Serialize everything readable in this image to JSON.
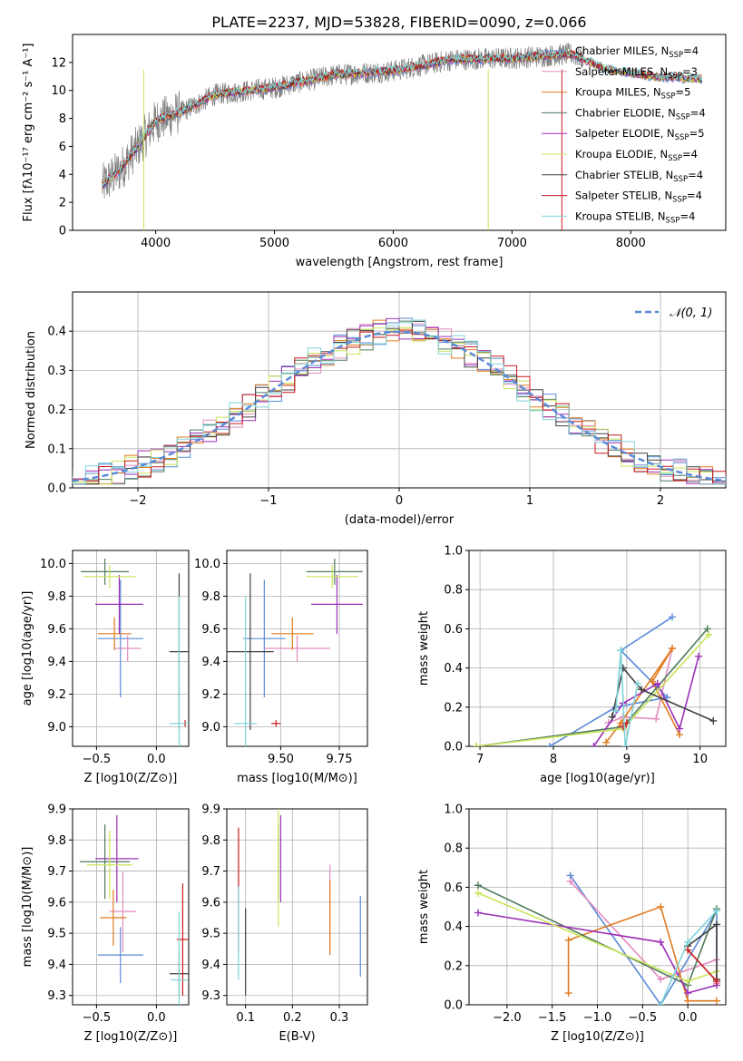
{
  "colors": {
    "chabrier_miles": "#5b8bd6",
    "salpeter_miles": "#e38cbf",
    "kroupa_miles": "#e07b1f",
    "chabrier_elodie": "#4f7a5c",
    "salpeter_elodie": "#9b30b8",
    "kroupa_elodie": "#c9e55a",
    "chabrier_stelib": "#404040",
    "salpeter_stelib": "#c8191e",
    "kroupa_stelib": "#7fd3d8",
    "data": "#808080"
  },
  "header": {
    "title": "PLATE=2237, MJD=53828, FIBERID=0090, z=0.066"
  },
  "legend": {
    "entries": [
      {
        "name": "Chabrier MILES",
        "n": "4",
        "color": "chabrier_miles"
      },
      {
        "name": "Salpeter MILES",
        "n": "3",
        "color": "salpeter_miles"
      },
      {
        "name": "Kroupa MILES",
        "n": "5",
        "color": "kroupa_miles"
      },
      {
        "name": "Chabrier ELODIE",
        "n": "4",
        "color": "chabrier_elodie"
      },
      {
        "name": "Salpeter ELODIE",
        "n": "5",
        "color": "salpeter_elodie"
      },
      {
        "name": "Kroupa ELODIE",
        "n": "4",
        "color": "kroupa_elodie"
      },
      {
        "name": "Chabrier STELIB",
        "n": "4",
        "color": "chabrier_stelib"
      },
      {
        "name": "Salpeter STELIB",
        "n": "4",
        "color": "salpeter_stelib"
      },
      {
        "name": "Kroupa STELIB",
        "n": "4",
        "color": "kroupa_stelib"
      }
    ],
    "n_prefix": "N",
    "n_sub": "SSP"
  },
  "chart_data": [
    {
      "id": "spectrum",
      "type": "line",
      "xlabel": "wavelength [Angstrom, rest frame]",
      "ylabel": "Flux [fλ10⁻¹⁷ erg cm⁻² s⁻¹ A⁻¹]",
      "xlim": [
        3300,
        8800
      ],
      "ylim": [
        0,
        14
      ],
      "xticks": [
        4000,
        5000,
        6000,
        7000,
        8000
      ],
      "yticks": [
        0,
        2,
        4,
        6,
        8,
        10,
        12
      ],
      "continuum_knots": [
        [
          3550,
          3.2
        ],
        [
          3700,
          4.3
        ],
        [
          3850,
          6.0
        ],
        [
          4000,
          7.8
        ],
        [
          4250,
          8.6
        ],
        [
          4500,
          9.7
        ],
        [
          5000,
          10.2
        ],
        [
          5500,
          11.1
        ],
        [
          6000,
          11.4
        ],
        [
          6500,
          12.2
        ],
        [
          7000,
          12.3
        ],
        [
          7500,
          12.6
        ],
        [
          7800,
          11.5
        ],
        [
          8200,
          11.0
        ],
        [
          8600,
          10.8
        ]
      ],
      "data_range": [
        3550,
        7600
      ],
      "model_range": [
        3550,
        8600
      ]
    },
    {
      "id": "residuals",
      "type": "line",
      "xlabel": "(data-model)/error",
      "ylabel": "Normed distribution",
      "xlim": [
        -2.5,
        2.5
      ],
      "ylim": [
        0,
        0.5
      ],
      "xticks": [
        -2,
        -1,
        0,
        1,
        2
      ],
      "yticks": [
        0.0,
        0.1,
        0.2,
        0.3,
        0.4
      ],
      "legend": "𝒩(0, 1)",
      "gaussian": {
        "mu": 0,
        "sigma": 1
      }
    },
    {
      "id": "age-vs-z",
      "type": "scatter",
      "xlabel": "Z [log10(Z/Z⊙)]",
      "ylabel": "age  [log10(age/yr)]",
      "xlim": [
        -0.7,
        0.27
      ],
      "ylim": [
        8.88,
        10.08
      ],
      "xticks": [
        -0.5,
        0.0
      ],
      "yticks": [
        9.0,
        9.2,
        9.4,
        9.6,
        9.8,
        10.0
      ],
      "points": [
        {
          "s": "chabrier_miles",
          "x": -0.3,
          "xe": 0.19,
          "y": 9.54,
          "ye": 0.36
        },
        {
          "s": "salpeter_miles",
          "x": -0.24,
          "xe": 0.11,
          "y": 9.48,
          "ye": 0.08
        },
        {
          "s": "kroupa_miles",
          "x": -0.35,
          "xe": 0.14,
          "y": 9.57,
          "ye": 0.1
        },
        {
          "s": "chabrier_elodie",
          "x": -0.43,
          "xe": 0.2,
          "y": 9.95,
          "ye": 0.08
        },
        {
          "s": "salpeter_elodie",
          "x": -0.31,
          "xe": 0.2,
          "y": 9.75,
          "ye": 0.18
        },
        {
          "s": "kroupa_elodie",
          "x": -0.39,
          "xe": 0.22,
          "y": 9.92,
          "ye": 0.07
        },
        {
          "s": "chabrier_stelib",
          "x": 0.19,
          "xe": 0.08,
          "y": 9.46,
          "ye": 0.48
        },
        {
          "s": "salpeter_stelib",
          "x": 0.24,
          "xe": 0.01,
          "y": 9.02,
          "ye": 0.02
        },
        {
          "s": "kroupa_stelib",
          "x": 0.19,
          "xe": 0.08,
          "y": 9.02,
          "ye": 0.78
        }
      ]
    },
    {
      "id": "age-vs-mass",
      "type": "scatter",
      "xlabel": "mass [log10(M/M⊙)]",
      "ylabel": "",
      "xlim": [
        9.27,
        9.87
      ],
      "ylim": [
        8.88,
        10.08
      ],
      "xticks": [
        9.5,
        9.75
      ],
      "yticks": [
        9.0,
        9.2,
        9.4,
        9.6,
        9.8,
        10.0
      ],
      "points": [
        {
          "s": "chabrier_miles",
          "x": 9.43,
          "xe": 0.09,
          "y": 9.54,
          "ye": 0.36
        },
        {
          "s": "salpeter_miles",
          "x": 9.57,
          "xe": 0.14,
          "y": 9.48,
          "ye": 0.08
        },
        {
          "s": "kroupa_miles",
          "x": 9.55,
          "xe": 0.09,
          "y": 9.57,
          "ye": 0.1
        },
        {
          "s": "chabrier_elodie",
          "x": 9.73,
          "xe": 0.12,
          "y": 9.95,
          "ye": 0.08
        },
        {
          "s": "salpeter_elodie",
          "x": 9.74,
          "xe": 0.11,
          "y": 9.75,
          "ye": 0.18
        },
        {
          "s": "kroupa_elodie",
          "x": 9.72,
          "xe": 0.11,
          "y": 9.92,
          "ye": 0.07
        },
        {
          "s": "chabrier_stelib",
          "x": 9.37,
          "xe": 0.1,
          "y": 9.46,
          "ye": 0.48
        },
        {
          "s": "salpeter_stelib",
          "x": 9.48,
          "xe": 0.02,
          "y": 9.02,
          "ye": 0.02
        },
        {
          "s": "kroupa_stelib",
          "x": 9.35,
          "xe": 0.05,
          "y": 9.02,
          "ye": 0.78
        }
      ]
    },
    {
      "id": "weight-vs-age",
      "type": "line",
      "xlabel": "age  [log10(age/yr)]",
      "ylabel": "mass weight",
      "xlim": [
        6.85,
        10.35
      ],
      "ylim": [
        0,
        1
      ],
      "xticks": [
        7,
        8,
        9,
        10
      ],
      "yticks": [
        0.0,
        0.2,
        0.4,
        0.6,
        0.8,
        1.0
      ],
      "series": [
        {
          "s": "chabrier_miles",
          "x": [
            7.95,
            8.85,
            9.55,
            8.92,
            9.62
          ],
          "y": [
            0.0,
            0.2,
            0.25,
            0.49,
            0.66
          ]
        },
        {
          "s": "salpeter_miles",
          "x": [
            8.75,
            8.95,
            9.4,
            9.62
          ],
          "y": [
            0.12,
            0.15,
            0.14,
            0.5
          ]
        },
        {
          "s": "kroupa_miles",
          "x": [
            8.72,
            8.92,
            9.62,
            9.35,
            9.72
          ],
          "y": [
            0.02,
            0.12,
            0.5,
            0.33,
            0.06
          ]
        },
        {
          "s": "chabrier_elodie",
          "x": [
            6.95,
            8.95,
            10.1
          ],
          "y": [
            0.0,
            0.1,
            0.6
          ]
        },
        {
          "s": "salpeter_elodie",
          "x": [
            8.55,
            8.95,
            9.42,
            9.72,
            9.98
          ],
          "y": [
            0.0,
            0.22,
            0.32,
            0.09,
            0.46
          ]
        },
        {
          "s": "kroupa_elodie",
          "x": [
            6.95,
            8.95,
            10.12
          ],
          "y": [
            0.0,
            0.09,
            0.57
          ]
        },
        {
          "s": "chabrier_stelib",
          "x": [
            8.8,
            8.95,
            9.2,
            10.18
          ],
          "y": [
            0.15,
            0.4,
            0.29,
            0.13
          ]
        },
        {
          "s": "salpeter_stelib",
          "x": [
            8.95,
            9.0
          ],
          "y": [
            0.1,
            0.12
          ]
        },
        {
          "s": "kroupa_stelib",
          "x": [
            8.85,
            8.92,
            8.98,
            9.15
          ],
          "y": [
            0.18,
            0.49,
            0.0,
            0.32
          ]
        }
      ]
    },
    {
      "id": "mass-vs-z",
      "type": "scatter",
      "xlabel": "Z [log10(Z/Z⊙)]",
      "ylabel": "mass [log10(M/M⊙)]",
      "xlim": [
        -0.7,
        0.27
      ],
      "ylim": [
        9.27,
        9.9
      ],
      "xticks": [
        -0.5,
        0.0
      ],
      "yticks": [
        9.3,
        9.4,
        9.5,
        9.6,
        9.7,
        9.8,
        9.9
      ],
      "points": [
        {
          "s": "chabrier_miles",
          "x": -0.3,
          "xe": 0.19,
          "y": 9.43,
          "ye": 0.09
        },
        {
          "s": "salpeter_miles",
          "x": -0.28,
          "xe": 0.11,
          "y": 9.57,
          "ye": 0.13
        },
        {
          "s": "kroupa_miles",
          "x": -0.36,
          "xe": 0.11,
          "y": 9.55,
          "ye": 0.09
        },
        {
          "s": "chabrier_elodie",
          "x": -0.43,
          "xe": 0.21,
          "y": 9.73,
          "ye": 0.12
        },
        {
          "s": "salpeter_elodie",
          "x": -0.33,
          "xe": 0.18,
          "y": 9.74,
          "ye": 0.14
        },
        {
          "s": "kroupa_elodie",
          "x": -0.39,
          "xe": 0.19,
          "y": 9.72,
          "ye": 0.11
        },
        {
          "s": "chabrier_stelib",
          "x": 0.19,
          "xe": 0.08,
          "y": 9.37,
          "ye": 0.07
        },
        {
          "s": "salpeter_stelib",
          "x": 0.22,
          "xe": 0.05,
          "y": 9.48,
          "ye": 0.18
        },
        {
          "s": "kroupa_stelib",
          "x": 0.19,
          "xe": 0.07,
          "y": 9.35,
          "ye": 0.22
        }
      ]
    },
    {
      "id": "mass-vs-ebv",
      "type": "scatter",
      "xlabel": "E(B-V)",
      "ylabel": "",
      "xlim": [
        0.06,
        0.36
      ],
      "ylim": [
        9.27,
        9.9
      ],
      "xticks": [
        0.1,
        0.2,
        0.3
      ],
      "yticks": [
        9.3,
        9.4,
        9.5,
        9.6,
        9.7,
        9.8,
        9.9
      ],
      "points": [
        {
          "s": "chabrier_miles",
          "x": 0.345,
          "xe": 0,
          "y": 9.49,
          "ye": 0.13
        },
        {
          "s": "salpeter_miles",
          "x": 0.28,
          "xe": 0,
          "y": 9.58,
          "ye": 0.14
        },
        {
          "s": "kroupa_miles",
          "x": 0.28,
          "xe": 0,
          "y": 9.55,
          "ye": 0.12
        },
        {
          "s": "chabrier_elodie",
          "x": 0.17,
          "xe": 0,
          "y": 9.73,
          "ye": 0.12
        },
        {
          "s": "salpeter_elodie",
          "x": 0.175,
          "xe": 0,
          "y": 9.74,
          "ye": 0.14
        },
        {
          "s": "kroupa_elodie",
          "x": 0.17,
          "xe": 0,
          "y": 9.72,
          "ye": 0.2
        },
        {
          "s": "chabrier_stelib",
          "x": 0.1,
          "xe": 0,
          "y": 9.44,
          "ye": 0.14
        },
        {
          "s": "salpeter_stelib",
          "x": 0.085,
          "xe": 0,
          "y": 9.64,
          "ye": 0.2
        },
        {
          "s": "kroupa_stelib",
          "x": 0.085,
          "xe": 0,
          "y": 9.5,
          "ye": 0.15
        }
      ]
    },
    {
      "id": "weight-vs-z",
      "type": "line",
      "xlabel": "Z [log10(Z/Z⊙)]",
      "ylabel": "mass weight",
      "xlim": [
        -2.42,
        0.42
      ],
      "ylim": [
        0,
        1
      ],
      "xticks": [
        -2.0,
        -1.5,
        -1.0,
        -0.5,
        0.0
      ],
      "yticks": [
        0.0,
        0.2,
        0.4,
        0.6,
        0.8,
        1.0
      ],
      "series": [
        {
          "s": "chabrier_miles",
          "x": [
            -1.3,
            -0.3,
            0.32,
            0.32
          ],
          "y": [
            0.66,
            0.0,
            0.48,
            0.17
          ]
        },
        {
          "s": "salpeter_miles",
          "x": [
            -1.3,
            -0.3,
            0.32,
            0.32
          ],
          "y": [
            0.63,
            0.13,
            0.23,
            0.11
          ]
        },
        {
          "s": "kroupa_miles",
          "x": [
            -1.32,
            -1.32,
            -0.3,
            0.0,
            0.32
          ],
          "y": [
            0.06,
            0.33,
            0.5,
            0.02,
            0.02
          ]
        },
        {
          "s": "chabrier_elodie",
          "x": [
            -2.32,
            0.0,
            0.32
          ],
          "y": [
            0.61,
            0.1,
            0.49
          ]
        },
        {
          "s": "salpeter_elodie",
          "x": [
            -2.32,
            -0.3,
            0.0,
            0.32
          ],
          "y": [
            0.47,
            0.32,
            0.06,
            0.1
          ]
        },
        {
          "s": "kroupa_elodie",
          "x": [
            -2.32,
            0.0,
            0.32
          ],
          "y": [
            0.57,
            0.12,
            0.17
          ]
        },
        {
          "s": "chabrier_stelib",
          "x": [
            0.0,
            0.32,
            0.32
          ],
          "y": [
            0.3,
            0.41,
            0.13
          ]
        },
        {
          "s": "salpeter_stelib",
          "x": [
            0.0,
            0.32
          ],
          "y": [
            0.28,
            0.12
          ]
        },
        {
          "s": "kroupa_stelib",
          "x": [
            -0.3,
            0.0,
            0.32
          ],
          "y": [
            0.0,
            0.32,
            0.48
          ]
        }
      ]
    }
  ]
}
